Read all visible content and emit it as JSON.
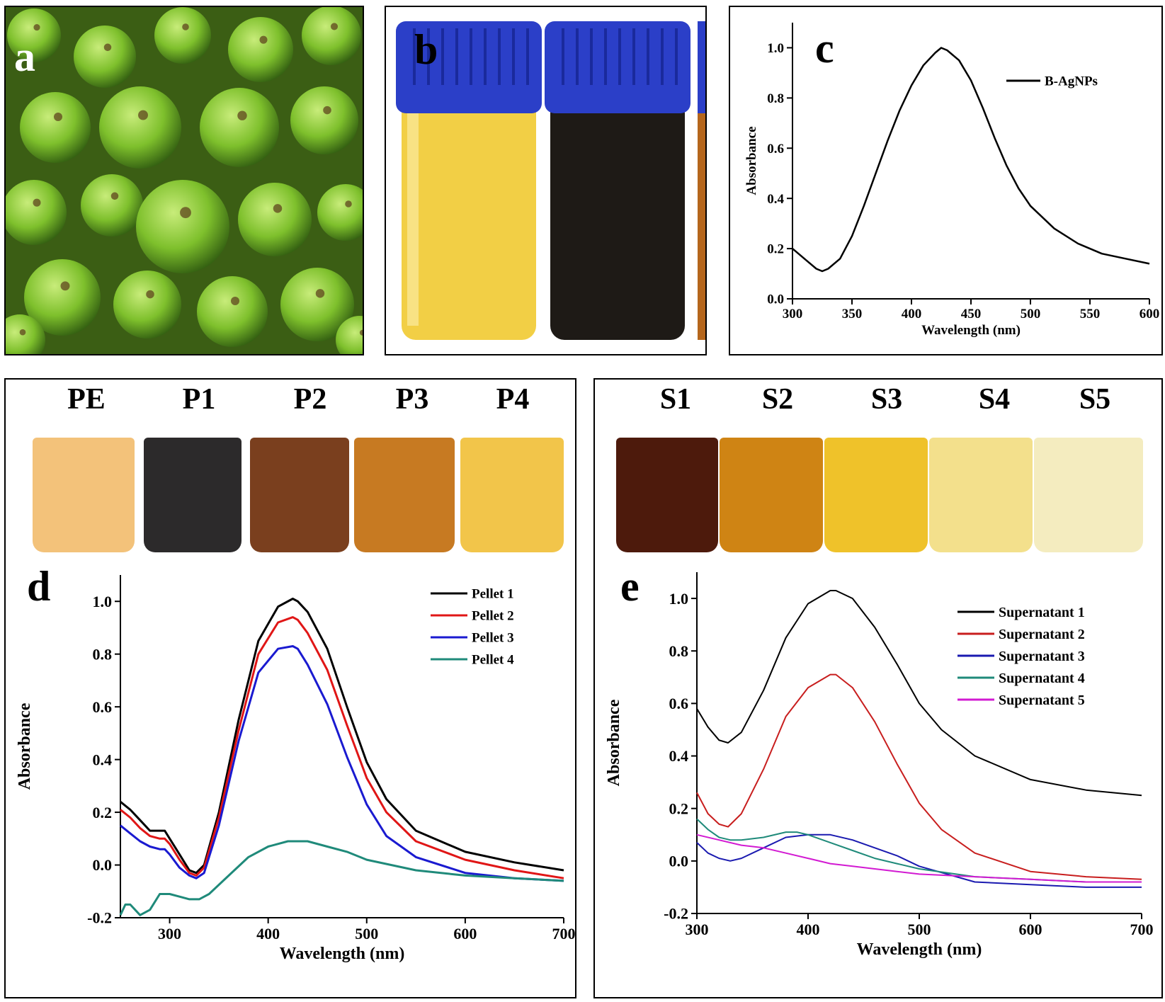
{
  "panels": {
    "a": {
      "letter": "a",
      "image": "green fruits photo"
    },
    "b": {
      "letter": "b",
      "image": "two vials: yellow extract and dark nanoparticle solution",
      "cap_color": "#2b3fc8",
      "vial_colors": [
        "#f2cf45",
        "#1e1a16"
      ]
    },
    "c": {
      "letter": "c"
    },
    "d": {
      "letter": "d",
      "vials": [
        {
          "label": "PE",
          "color": "#f3c27a"
        },
        {
          "label": "P1",
          "color": "#2c2a2b"
        },
        {
          "label": "P2",
          "color": "#7a3f1e"
        },
        {
          "label": "P3",
          "color": "#c77a22"
        },
        {
          "label": "P4",
          "color": "#f2c54a"
        }
      ]
    },
    "e": {
      "letter": "e",
      "vials": [
        {
          "label": "S1",
          "color": "#4d1a0c"
        },
        {
          "label": "S2",
          "color": "#cf8414"
        },
        {
          "label": "S3",
          "color": "#efc22a"
        },
        {
          "label": "S4",
          "color": "#f3e08c"
        },
        {
          "label": "S5",
          "color": "#f4ecbf"
        }
      ]
    }
  },
  "chart_data": [
    {
      "id": "c",
      "type": "line",
      "xlabel": "Wavelength (nm)",
      "ylabel": "Absorbance",
      "xlim": [
        300,
        600
      ],
      "ylim": [
        0.0,
        1.1
      ],
      "xticks": [
        300,
        350,
        400,
        450,
        500,
        550,
        600
      ],
      "yticks": [
        0.0,
        0.2,
        0.4,
        0.6,
        0.8,
        1.0
      ],
      "legend_position": "top-right",
      "series": [
        {
          "name": "B-AgNPs",
          "color": "#000000",
          "x": [
            300,
            310,
            320,
            325,
            330,
            340,
            350,
            360,
            370,
            380,
            390,
            400,
            410,
            420,
            425,
            430,
            440,
            450,
            460,
            470,
            480,
            490,
            500,
            520,
            540,
            560,
            580,
            600
          ],
          "y": [
            0.2,
            0.16,
            0.12,
            0.11,
            0.12,
            0.16,
            0.25,
            0.37,
            0.5,
            0.63,
            0.75,
            0.85,
            0.93,
            0.98,
            1.0,
            0.99,
            0.95,
            0.87,
            0.76,
            0.64,
            0.53,
            0.44,
            0.37,
            0.28,
            0.22,
            0.18,
            0.16,
            0.14
          ]
        }
      ]
    },
    {
      "id": "d",
      "type": "line",
      "xlabel": "Wavelength (nm)",
      "ylabel": "Absorbance",
      "xlim": [
        250,
        700
      ],
      "ylim": [
        -0.2,
        1.1
      ],
      "xticks": [
        300,
        400,
        500,
        600,
        700
      ],
      "yticks": [
        -0.2,
        0.0,
        0.2,
        0.4,
        0.6,
        0.8,
        1.0
      ],
      "legend_position": "top-right",
      "series": [
        {
          "name": "Pellet 1",
          "color": "#000000",
          "x": [
            250,
            260,
            270,
            280,
            290,
            295,
            300,
            310,
            320,
            327,
            335,
            350,
            370,
            390,
            410,
            425,
            430,
            440,
            460,
            480,
            500,
            520,
            550,
            600,
            650,
            700
          ],
          "y": [
            0.24,
            0.21,
            0.17,
            0.13,
            0.13,
            0.13,
            0.1,
            0.04,
            -0.02,
            -0.03,
            0.0,
            0.2,
            0.55,
            0.85,
            0.98,
            1.01,
            1.0,
            0.96,
            0.82,
            0.6,
            0.39,
            0.25,
            0.13,
            0.05,
            0.01,
            -0.02
          ]
        },
        {
          "name": "Pellet 2",
          "color": "#e01616",
          "x": [
            250,
            260,
            270,
            280,
            290,
            295,
            300,
            310,
            320,
            327,
            335,
            350,
            370,
            390,
            410,
            425,
            430,
            440,
            460,
            480,
            500,
            520,
            550,
            600,
            650,
            700
          ],
          "y": [
            0.21,
            0.18,
            0.14,
            0.11,
            0.1,
            0.1,
            0.08,
            0.02,
            -0.03,
            -0.04,
            -0.01,
            0.18,
            0.51,
            0.8,
            0.92,
            0.94,
            0.93,
            0.88,
            0.74,
            0.53,
            0.33,
            0.2,
            0.09,
            0.02,
            -0.02,
            -0.05
          ]
        },
        {
          "name": "Pellet 3",
          "color": "#1a1ad0",
          "x": [
            250,
            260,
            270,
            280,
            290,
            295,
            300,
            310,
            320,
            327,
            335,
            350,
            370,
            390,
            410,
            425,
            430,
            440,
            460,
            480,
            500,
            520,
            550,
            600,
            650,
            700
          ],
          "y": [
            0.15,
            0.12,
            0.09,
            0.07,
            0.06,
            0.06,
            0.04,
            -0.01,
            -0.04,
            -0.05,
            -0.03,
            0.15,
            0.47,
            0.73,
            0.82,
            0.83,
            0.82,
            0.76,
            0.61,
            0.41,
            0.23,
            0.11,
            0.03,
            -0.03,
            -0.05,
            -0.06
          ]
        },
        {
          "name": "Pellet 4",
          "color": "#1f8a7a",
          "x": [
            250,
            255,
            260,
            270,
            280,
            290,
            300,
            310,
            320,
            330,
            340,
            360,
            380,
            400,
            420,
            440,
            460,
            480,
            500,
            550,
            600,
            650,
            700
          ],
          "y": [
            -0.19,
            -0.15,
            -0.15,
            -0.19,
            -0.17,
            -0.11,
            -0.11,
            -0.12,
            -0.13,
            -0.13,
            -0.11,
            -0.04,
            0.03,
            0.07,
            0.09,
            0.09,
            0.07,
            0.05,
            0.02,
            -0.02,
            -0.04,
            -0.05,
            -0.06
          ]
        }
      ]
    },
    {
      "id": "e",
      "type": "line",
      "xlabel": "Wavelength (nm)",
      "ylabel": "Absorbance",
      "xlim": [
        300,
        700
      ],
      "ylim": [
        -0.2,
        1.1
      ],
      "xticks": [
        300,
        400,
        500,
        600,
        700
      ],
      "yticks": [
        -0.2,
        0.0,
        0.2,
        0.4,
        0.6,
        0.8,
        1.0
      ],
      "legend_position": "top-right",
      "series": [
        {
          "name": "Supernatant 1",
          "color": "#000000",
          "x": [
            300,
            310,
            320,
            328,
            340,
            360,
            380,
            400,
            420,
            425,
            440,
            460,
            480,
            500,
            520,
            550,
            600,
            650,
            700
          ],
          "y": [
            0.58,
            0.51,
            0.46,
            0.45,
            0.49,
            0.65,
            0.85,
            0.98,
            1.03,
            1.03,
            1.0,
            0.89,
            0.75,
            0.6,
            0.5,
            0.4,
            0.31,
            0.27,
            0.25
          ]
        },
        {
          "name": "Supernatant 2",
          "color": "#c81e1e",
          "x": [
            300,
            310,
            320,
            328,
            340,
            360,
            380,
            400,
            420,
            425,
            440,
            460,
            480,
            500,
            520,
            550,
            600,
            650,
            700
          ],
          "y": [
            0.26,
            0.18,
            0.14,
            0.13,
            0.18,
            0.35,
            0.55,
            0.66,
            0.71,
            0.71,
            0.66,
            0.53,
            0.37,
            0.22,
            0.12,
            0.03,
            -0.04,
            -0.06,
            -0.07
          ]
        },
        {
          "name": "Supernatant 3",
          "color": "#1a1ab0",
          "x": [
            300,
            310,
            320,
            330,
            340,
            360,
            380,
            400,
            420,
            440,
            460,
            480,
            500,
            550,
            600,
            650,
            700
          ],
          "y": [
            0.07,
            0.03,
            0.01,
            0.0,
            0.01,
            0.05,
            0.09,
            0.1,
            0.1,
            0.08,
            0.05,
            0.02,
            -0.02,
            -0.08,
            -0.09,
            -0.1,
            -0.1
          ]
        },
        {
          "name": "Supernatant 4",
          "color": "#1f8a7a",
          "x": [
            300,
            310,
            320,
            330,
            340,
            360,
            380,
            390,
            400,
            420,
            440,
            460,
            480,
            500,
            550,
            600,
            650,
            700
          ],
          "y": [
            0.16,
            0.12,
            0.09,
            0.08,
            0.08,
            0.09,
            0.11,
            0.11,
            0.1,
            0.07,
            0.04,
            0.01,
            -0.01,
            -0.03,
            -0.06,
            -0.07,
            -0.08,
            -0.08
          ]
        },
        {
          "name": "Supernatant 5",
          "color": "#d21ad2",
          "x": [
            300,
            320,
            340,
            360,
            380,
            400,
            420,
            440,
            460,
            480,
            500,
            550,
            600,
            650,
            700
          ],
          "y": [
            0.1,
            0.08,
            0.06,
            0.05,
            0.03,
            0.01,
            -0.01,
            -0.02,
            -0.03,
            -0.04,
            -0.05,
            -0.06,
            -0.07,
            -0.08,
            -0.08
          ]
        }
      ]
    }
  ]
}
